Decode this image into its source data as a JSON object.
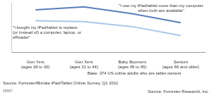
{
  "chart_data": {
    "type": "line",
    "categories": [
      "Gen Yers (ages 18 to 30)",
      "Gen Xers (ages 31 to 44)",
      "Baby Boomers (ages 45 to 65)",
      "Seniors (ages 66 and older)"
    ],
    "series": [
      {
        "name": "\"I use my iPad/tablet more than my computer when both are available\"",
        "color": "#5a7dbb",
        "values": [
          43,
          46,
          39,
          30
        ]
      },
      {
        "name": "\"I bought my iPad/tablet to replace (or instead of) a computer, laptop, or eReader\"",
        "color": "#a8c8e8",
        "values": [
          32,
          31,
          26,
          17
        ]
      }
    ],
    "ylim": [
      0,
      50
    ],
    "tick_labels": "x",
    "grid": false,
    "annotations": [
      "Base: 374 US online adults who are tablet owners",
      "Source: Forrester/Bizrate iPad/Tablet Online Survey, Q1 2011",
      "58987",
      "Source: Forrester Research, Inc."
    ]
  }
}
